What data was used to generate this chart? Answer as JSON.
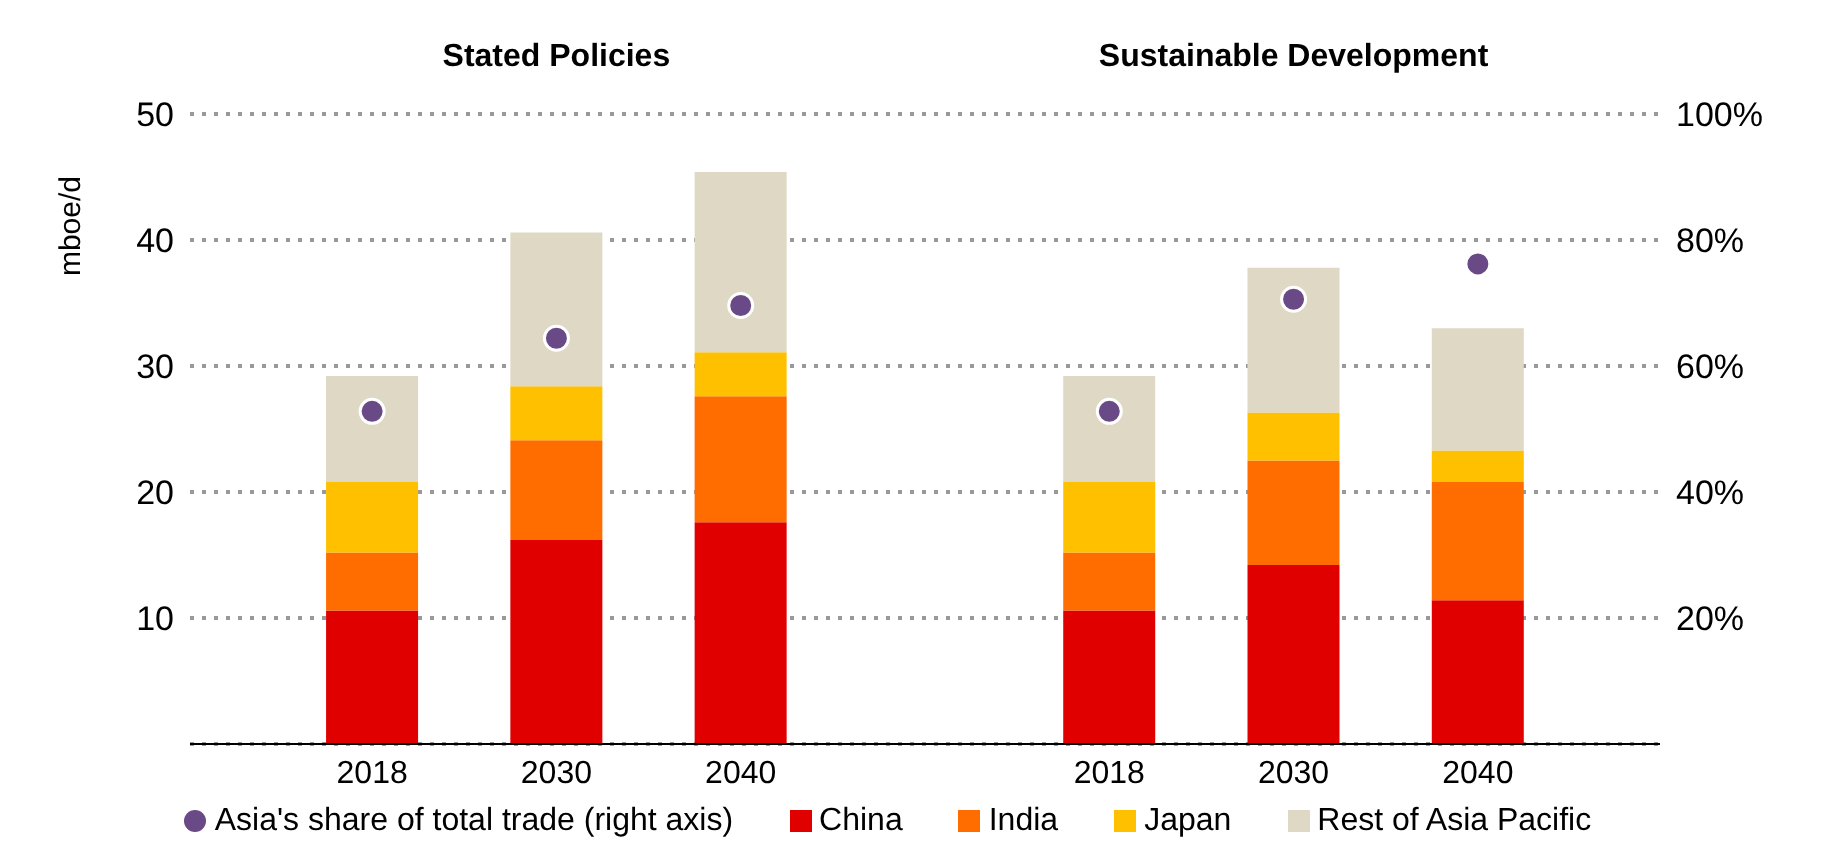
{
  "chart_data": {
    "type": "bar",
    "stacked": true,
    "annotations": [
      "Stated Policies",
      "Sustainable Development"
    ],
    "ylabel": "mboe/d",
    "categories": [
      "2018",
      "2030",
      "2040",
      null,
      "2018",
      "2030",
      "2040"
    ],
    "series": [
      {
        "name": "China",
        "color": "#e00000",
        "values": [
          10.6,
          16.2,
          17.6,
          null,
          10.6,
          14.2,
          11.4
        ]
      },
      {
        "name": "India",
        "color": "#ff6d00",
        "values": [
          4.6,
          7.9,
          10.0,
          null,
          4.6,
          8.3,
          9.4
        ]
      },
      {
        "name": "Japan",
        "color": "#ffc000",
        "values": [
          5.6,
          4.3,
          3.5,
          null,
          5.6,
          3.8,
          2.5
        ]
      },
      {
        "name": "Rest of Asia Pacific",
        "color": "#ded8c4",
        "values": [
          8.4,
          12.2,
          14.3,
          null,
          8.4,
          11.5,
          9.7
        ]
      },
      {
        "name": "Asia's share of total trade (right axis)",
        "type": "scatter",
        "axis": "y2",
        "marker": "circle",
        "color": "#6a4a86",
        "values": [
          52.8,
          64.4,
          69.6,
          null,
          52.8,
          70.6,
          76.2
        ]
      }
    ],
    "ylim": [
      0,
      50
    ],
    "yticks": [
      {
        "value": 0,
        "label": null
      },
      10,
      20,
      30,
      40,
      50
    ],
    "y2lim": [
      0,
      100
    ],
    "y2ticks": [
      {
        "value": 0,
        "label": null
      },
      {
        "value": 20,
        "label": "20%"
      },
      {
        "value": 40,
        "label": "40%"
      },
      {
        "value": 60,
        "label": "60%"
      },
      {
        "value": 80,
        "label": "80%"
      },
      {
        "value": 100,
        "label": "100%"
      }
    ],
    "grid": "y",
    "legend": "bottom"
  }
}
